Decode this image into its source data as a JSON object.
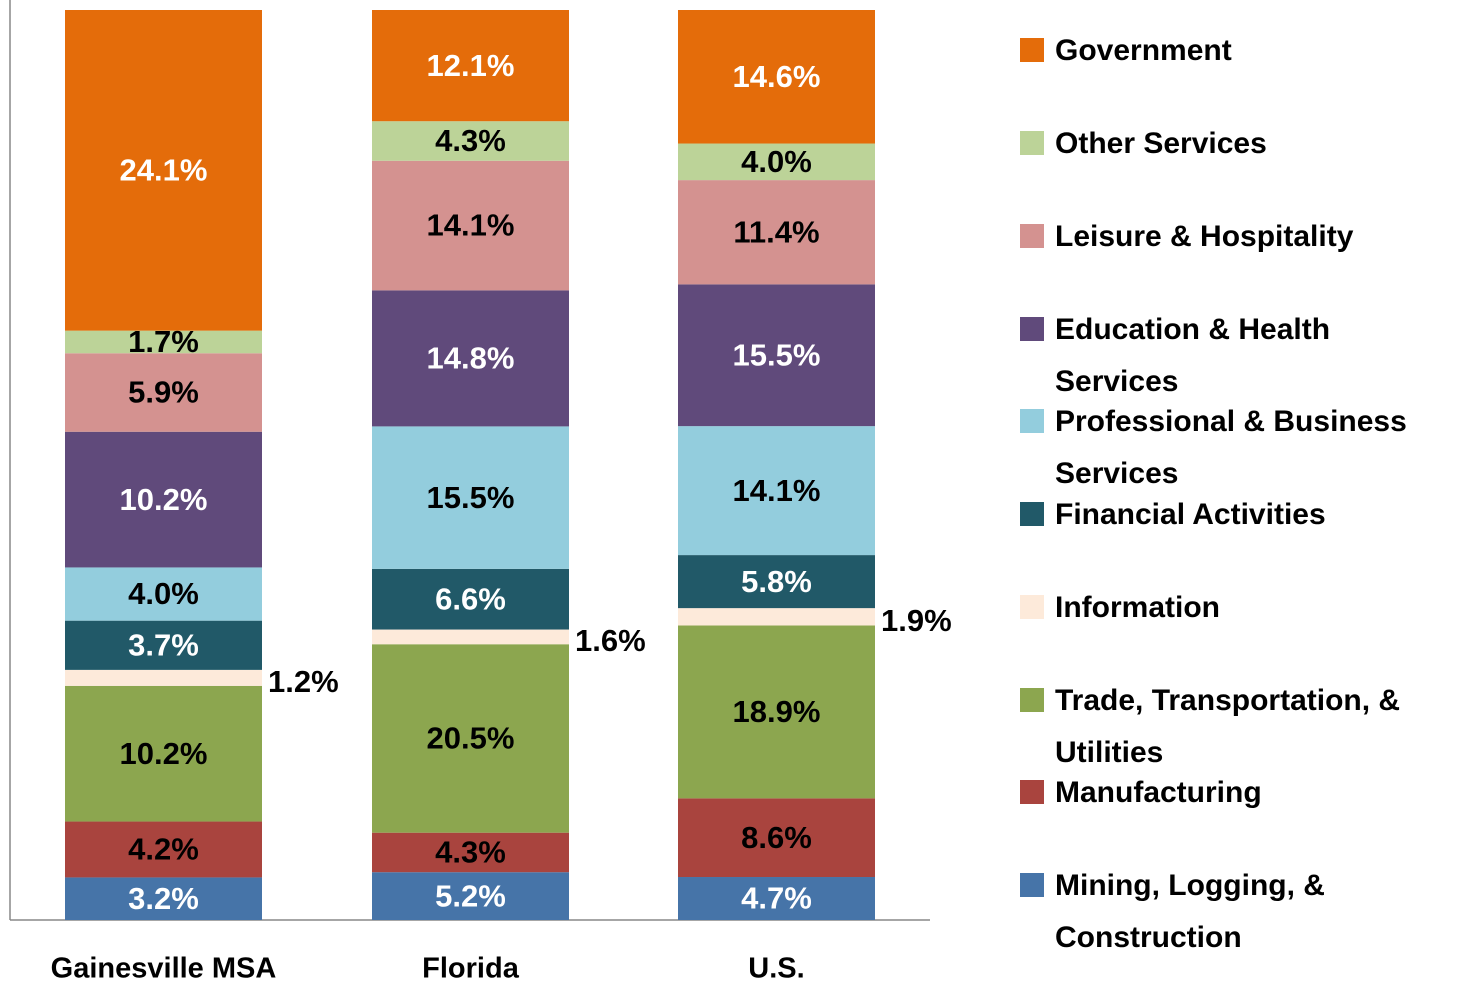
{
  "chart_data": {
    "type": "bar",
    "stacked": true,
    "normalize": true,
    "categories": [
      "Gainesville MSA",
      "Florida",
      "U.S."
    ],
    "series": [
      {
        "name": "Mining, Logging, & Construction",
        "color": "#4674a8",
        "label_color": "#ffffff",
        "values": [
          3.2,
          5.2,
          4.7
        ],
        "value_labels": [
          "3.2%",
          "5.2%",
          "4.7%"
        ]
      },
      {
        "name": "Manufacturing",
        "color": "#a9443e",
        "label_color": "#000000",
        "values": [
          4.2,
          4.3,
          8.6
        ],
        "value_labels": [
          "4.2%",
          "4.3%",
          "8.6%"
        ]
      },
      {
        "name": "Trade, Transportation, & Utilities",
        "color": "#8ca64f",
        "label_color": "#000000",
        "values": [
          10.2,
          20.5,
          18.9
        ],
        "value_labels": [
          "10.2%",
          "20.5%",
          "18.9%"
        ]
      },
      {
        "name": "Information",
        "color": "#fdeada",
        "label_color": "#000000",
        "label_position": "right",
        "values": [
          1.2,
          1.6,
          1.9
        ],
        "value_labels": [
          "1.2%",
          "1.6%",
          "1.9%"
        ]
      },
      {
        "name": "Financial Activities",
        "color": "#215968",
        "label_color": "#ffffff",
        "values": [
          3.7,
          6.6,
          5.8
        ],
        "value_labels": [
          "3.7%",
          "6.6%",
          "5.8%"
        ]
      },
      {
        "name": "Professional & Business Services",
        "color": "#93cddd",
        "label_color": "#000000",
        "values": [
          4.0,
          15.5,
          14.1
        ],
        "value_labels": [
          "4.0%",
          "15.5%",
          "14.1%"
        ]
      },
      {
        "name": "Education & Health Services",
        "color": "#604a7b",
        "label_color": "#ffffff",
        "values": [
          10.2,
          14.8,
          15.5
        ],
        "value_labels": [
          "10.2%",
          "14.8%",
          "15.5%"
        ]
      },
      {
        "name": "Leisure & Hospitality",
        "color": "#d49290",
        "label_color": "#000000",
        "values": [
          5.9,
          14.1,
          11.4
        ],
        "value_labels": [
          "5.9%",
          "14.1%",
          "11.4%"
        ]
      },
      {
        "name": "Other Services",
        "color": "#bcd398",
        "label_color": "#000000",
        "values": [
          1.7,
          4.3,
          4.0
        ],
        "value_labels": [
          "1.7%",
          "4.3%",
          "4.0%"
        ]
      },
      {
        "name": "Government",
        "color": "#e46c0a",
        "label_color": "#ffffff",
        "values": [
          24.1,
          12.1,
          14.6
        ],
        "value_labels": [
          "24.1%",
          "12.1%",
          "14.6%"
        ]
      }
    ],
    "legend": "right"
  }
}
